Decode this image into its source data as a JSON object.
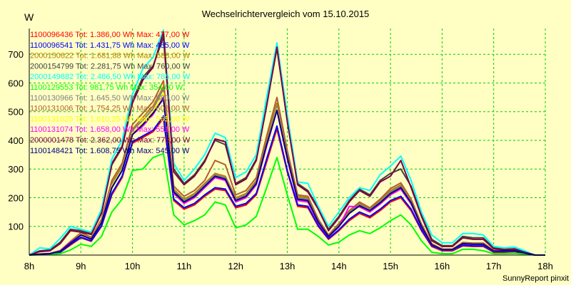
{
  "chart_data": {
    "type": "line",
    "title": "Wechselrichtervergleich vom 15.10.2015",
    "ylabel": "W",
    "xlabel": "",
    "footer": "SunnyReport pinxit",
    "x_ticks": [
      "8h",
      "9h",
      "10h",
      "11h",
      "12h",
      "13h",
      "14h",
      "15h",
      "16h",
      "17h",
      "18h"
    ],
    "y_ticks": [
      100,
      200,
      300,
      400,
      500,
      600,
      700
    ],
    "xlim": [
      8,
      18
    ],
    "ylim": [
      0,
      790
    ],
    "grid": true,
    "legend_position": "top-left",
    "colors": {
      "background": "#ffffc4",
      "grid": "#00d000"
    },
    "x": [
      8.0,
      8.2,
      8.4,
      8.6,
      8.8,
      9.0,
      9.2,
      9.4,
      9.6,
      9.8,
      10.0,
      10.2,
      10.4,
      10.6,
      10.8,
      11.0,
      11.2,
      11.4,
      11.6,
      11.8,
      12.0,
      12.2,
      12.4,
      12.6,
      12.8,
      13.0,
      13.2,
      13.4,
      13.6,
      13.8,
      14.0,
      14.2,
      14.4,
      14.6,
      14.8,
      15.0,
      15.2,
      15.4,
      15.6,
      15.8,
      16.0,
      16.2,
      16.4,
      16.6,
      16.8,
      17.0,
      17.2,
      17.4,
      17.6,
      17.8,
      18.0
    ],
    "series": [
      {
        "name": "1100096436",
        "legend": "1100096436 Tot: 1.386,00 Wh Max: 477,00 W",
        "color": "#ff0000",
        "values": [
          0,
          2,
          3,
          10,
          35,
          60,
          48,
          100,
          210,
          270,
          390,
          410,
          430,
          477,
          190,
          160,
          175,
          205,
          230,
          225,
          165,
          175,
          210,
          325,
          440,
          290,
          170,
          165,
          100,
          55,
          85,
          120,
          145,
          130,
          155,
          185,
          200,
          155,
          85,
          30,
          15,
          15,
          32,
          30,
          30,
          10,
          10,
          12,
          5,
          0,
          0
        ]
      },
      {
        "name": "1100096541",
        "legend": "1100096541 Tot: 1.431,75 Wh Max: 485,00 W",
        "color": "#0000ff",
        "values": [
          0,
          2,
          3,
          10,
          38,
          62,
          50,
          102,
          215,
          275,
          395,
          415,
          435,
          485,
          195,
          165,
          180,
          210,
          235,
          230,
          170,
          180,
          215,
          335,
          450,
          295,
          175,
          170,
          103,
          58,
          88,
          125,
          150,
          135,
          160,
          190,
          205,
          160,
          88,
          32,
          17,
          17,
          34,
          32,
          32,
          12,
          12,
          13,
          6,
          0,
          0
        ]
      },
      {
        "name": "2000150622",
        "legend": "2000150622 Tot: 1.681,88 Wh Max: 588,00 W",
        "color": "#c08000",
        "values": [
          0,
          3,
          5,
          15,
          45,
          75,
          60,
          120,
          250,
          310,
          440,
          480,
          520,
          588,
          230,
          195,
          215,
          250,
          285,
          275,
          200,
          215,
          260,
          400,
          530,
          350,
          205,
          200,
          120,
          68,
          105,
          150,
          180,
          160,
          190,
          225,
          245,
          190,
          105,
          38,
          20,
          20,
          42,
          40,
          40,
          15,
          15,
          16,
          8,
          0,
          0
        ]
      },
      {
        "name": "2000154799",
        "legend": "2000154799 Tot: 2.281,75 Wh Max: 760,00 W",
        "color": "#404040",
        "values": [
          0,
          15,
          18,
          45,
          90,
          85,
          75,
          150,
          320,
          380,
          540,
          620,
          660,
          760,
          300,
          250,
          280,
          330,
          400,
          385,
          250,
          270,
          335,
          525,
          720,
          470,
          250,
          225,
          165,
          90,
          135,
          190,
          230,
          210,
          260,
          285,
          300,
          240,
          140,
          55,
          33,
          33,
          65,
          60,
          60,
          25,
          20,
          22,
          12,
          0,
          0
        ]
      },
      {
        "name": "2000149882",
        "legend": "2000149882 Tot: 2.486,50 Wh Max: 785,00 W",
        "color": "#00ffff",
        "values": [
          0,
          25,
          22,
          58,
          100,
          90,
          80,
          160,
          335,
          400,
          560,
          650,
          690,
          785,
          320,
          260,
          300,
          350,
          425,
          410,
          270,
          290,
          350,
          550,
          740,
          490,
          255,
          250,
          170,
          100,
          150,
          200,
          235,
          225,
          280,
          310,
          345,
          260,
          150,
          70,
          43,
          43,
          75,
          75,
          70,
          30,
          25,
          28,
          15,
          0,
          0
        ]
      },
      {
        "name": "1100129553",
        "legend": "1100129553 Tot: 981,75 Wh Max: 354,00 W",
        "color": "#00ff00",
        "values": [
          0,
          1,
          2,
          5,
          18,
          38,
          30,
          65,
          150,
          195,
          295,
          300,
          340,
          354,
          140,
          105,
          120,
          140,
          185,
          175,
          95,
          105,
          135,
          235,
          340,
          210,
          90,
          90,
          65,
          35,
          45,
          70,
          85,
          75,
          95,
          120,
          140,
          105,
          50,
          10,
          5,
          5,
          20,
          20,
          15,
          5,
          5,
          6,
          3,
          0,
          0
        ]
      },
      {
        "name": "1100130966",
        "legend": "1100130966 Tot: 1.645,50 Wh Max: 580,00 W",
        "color": "#808080",
        "values": [
          0,
          3,
          5,
          14,
          44,
          73,
          58,
          118,
          245,
          305,
          435,
          470,
          510,
          580,
          225,
          190,
          210,
          245,
          280,
          270,
          195,
          210,
          255,
          390,
          520,
          345,
          200,
          195,
          118,
          66,
          103,
          148,
          176,
          158,
          186,
          220,
          240,
          186,
          103,
          37,
          19,
          19,
          41,
          39,
          39,
          14,
          14,
          15,
          7,
          0,
          0
        ]
      },
      {
        "name": "1100131006",
        "legend": "1100131006 Tot: 1.754,25 Wh Max: 608,00 W",
        "color": "#b06030",
        "values": [
          0,
          4,
          6,
          16,
          48,
          78,
          62,
          125,
          260,
          320,
          455,
          495,
          535,
          608,
          240,
          205,
          225,
          260,
          330,
          315,
          210,
          225,
          270,
          415,
          550,
          365,
          210,
          205,
          125,
          70,
          110,
          155,
          185,
          165,
          195,
          232,
          252,
          195,
          108,
          40,
          21,
          21,
          44,
          42,
          42,
          16,
          16,
          17,
          8,
          0,
          0
        ]
      },
      {
        "name": "1100131025",
        "legend": "1100131025 Tot: 1.610,25 Wh Max: 565,00 W",
        "color": "#ffff00",
        "values": [
          0,
          3,
          5,
          13,
          43,
          72,
          57,
          116,
          240,
          300,
          425,
          460,
          500,
          565,
          220,
          185,
          205,
          240,
          275,
          265,
          190,
          205,
          250,
          385,
          510,
          340,
          195,
          190,
          115,
          65,
          100,
          145,
          172,
          155,
          182,
          215,
          235,
          182,
          100,
          36,
          19,
          19,
          40,
          38,
          38,
          14,
          14,
          15,
          7,
          0,
          0
        ]
      },
      {
        "name": "1100131074",
        "legend": "1100131074 Tot: 1.658,00 Wh Max: 551,00 W",
        "color": "#ff00ff",
        "values": [
          0,
          3,
          5,
          14,
          44,
          70,
          56,
          114,
          235,
          295,
          420,
          450,
          490,
          551,
          215,
          180,
          200,
          235,
          270,
          260,
          185,
          200,
          245,
          380,
          505,
          335,
          190,
          185,
          112,
          64,
          98,
          170,
          168,
          150,
          178,
          210,
          230,
          178,
          98,
          35,
          18,
          18,
          39,
          37,
          37,
          13,
          13,
          14,
          7,
          0,
          0
        ]
      },
      {
        "name": "2000001478",
        "legend": "2000001478 Tot: 2.362,00 Wh Max: 778,00 W",
        "color": "#800040",
        "values": [
          0,
          12,
          15,
          40,
          85,
          80,
          72,
          145,
          315,
          375,
          530,
          610,
          655,
          778,
          290,
          245,
          275,
          325,
          405,
          395,
          245,
          265,
          330,
          520,
          725,
          465,
          245,
          220,
          160,
          85,
          130,
          185,
          225,
          205,
          255,
          275,
          330,
          235,
          135,
          50,
          30,
          30,
          60,
          55,
          55,
          22,
          18,
          20,
          10,
          0,
          0
        ]
      },
      {
        "name": "1100148421",
        "legend": "1100148421 Tot: 1.608,75 Wh Max: 545,00 W",
        "color": "#000080",
        "values": [
          0,
          3,
          5,
          13,
          42,
          70,
          56,
          113,
          235,
          295,
          420,
          455,
          495,
          545,
          220,
          185,
          205,
          240,
          275,
          265,
          190,
          205,
          250,
          385,
          505,
          340,
          195,
          190,
          115,
          65,
          100,
          145,
          172,
          155,
          182,
          215,
          235,
          182,
          100,
          36,
          19,
          19,
          40,
          38,
          38,
          14,
          14,
          15,
          7,
          0,
          0
        ]
      }
    ]
  }
}
